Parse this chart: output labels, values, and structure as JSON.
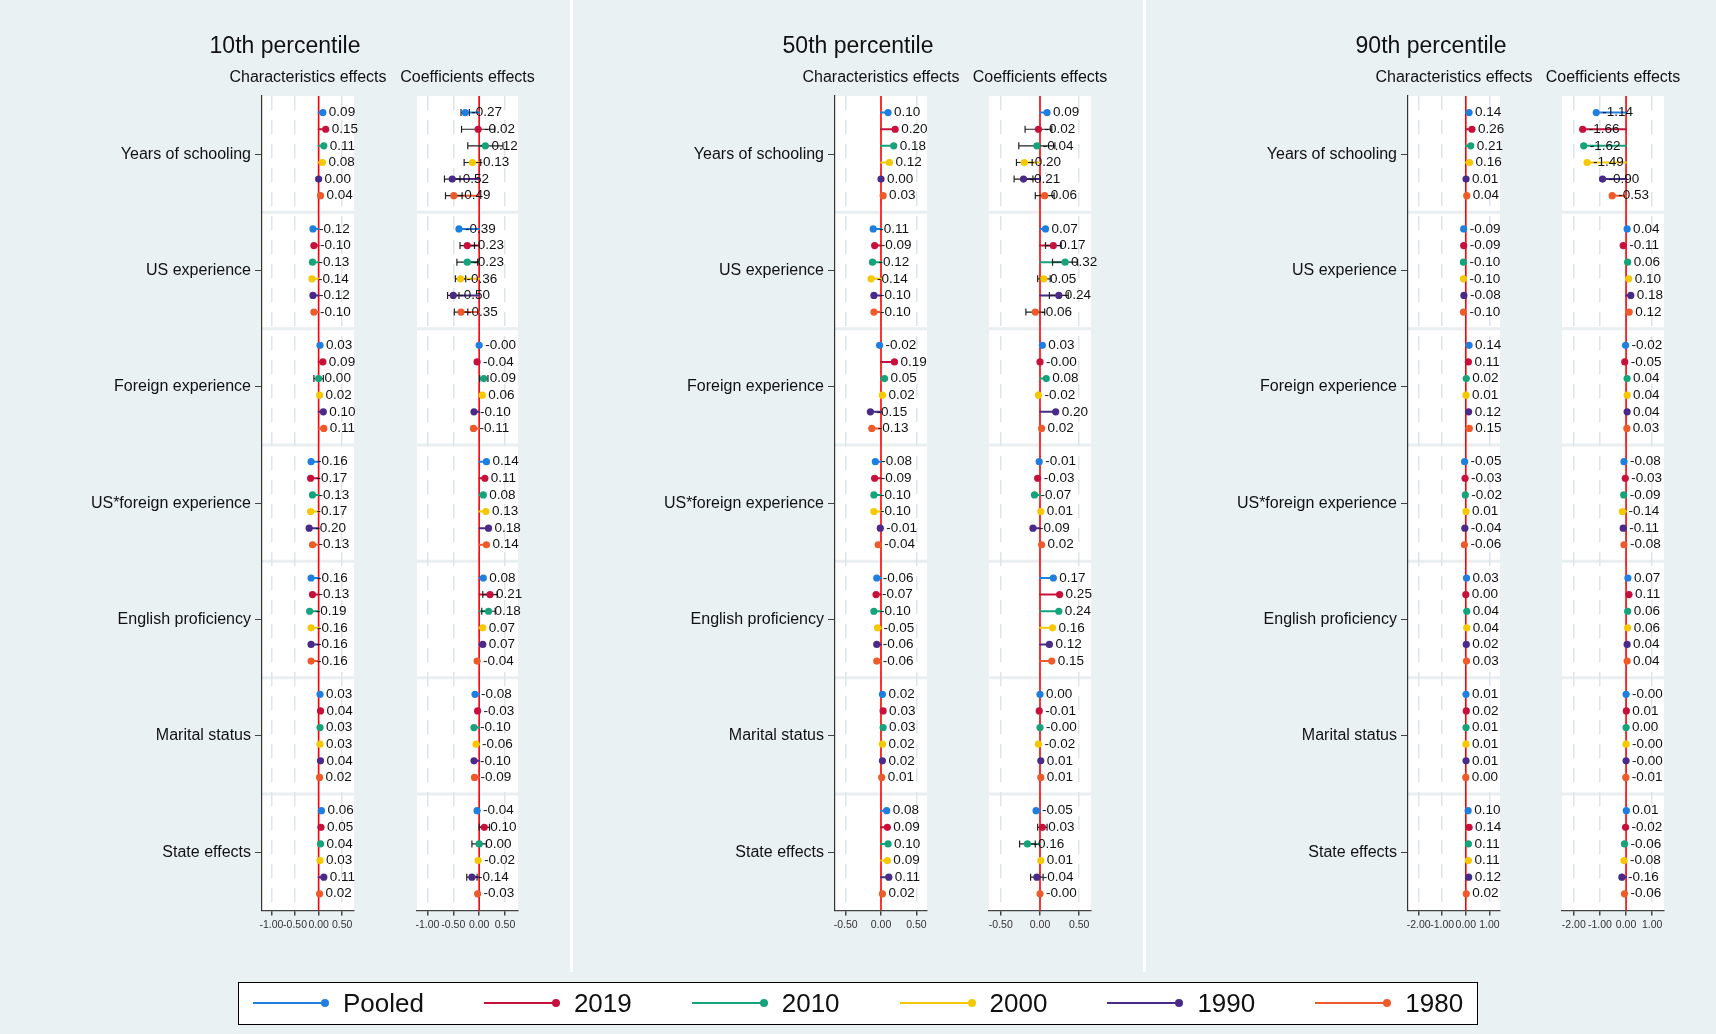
{
  "chart_data": [
    {
      "type": "lollipop",
      "orientation": "horizontal",
      "title": "10th percentile",
      "subtitle": "Characteristics effects",
      "categories": [
        "Years of schooling",
        "US experience",
        "Foreign experience",
        "US*foreign experience",
        "English proficiency",
        "Marital status",
        "State effects"
      ],
      "xlim": [
        -1.2,
        0.75
      ],
      "xticks": [
        {
          "value": -1,
          "label": "-1.00"
        },
        {
          "value": -0.5,
          "label": "-0.50"
        },
        {
          "value": 0,
          "label": "0.00"
        },
        {
          "value": 0.5,
          "label": "0.50"
        }
      ],
      "grid": true,
      "marker": "circle",
      "legend": "bottom",
      "ref_lines": [
        {
          "axis": "x",
          "value": 0,
          "color": "#ff0000"
        }
      ],
      "series": [
        {
          "name": "Pooled",
          "color": "#1e7fe0",
          "values": [
            0.09,
            -0.12,
            0.03,
            -0.16,
            -0.16,
            0.03,
            0.06
          ],
          "value_labels": [
            "0.09",
            "-0.12",
            "0.03",
            "-0.16",
            "-0.16",
            "0.03",
            "0.06"
          ]
        },
        {
          "name": "2019",
          "color": "#c8103c",
          "values": [
            0.15,
            -0.1,
            0.09,
            -0.17,
            -0.13,
            0.04,
            0.05
          ],
          "value_labels": [
            "0.15",
            "-0.10",
            "0.09",
            "-0.17",
            "-0.13",
            "0.04",
            "0.05"
          ]
        },
        {
          "name": "2010",
          "color": "#14a37a",
          "values": [
            0.11,
            -0.13,
            0.0,
            -0.13,
            -0.19,
            0.03,
            0.04
          ],
          "value_labels": [
            "0.11",
            "-0.13",
            "0.00",
            "-0.13",
            "-0.19",
            "0.03",
            "0.04"
          ],
          "errors": [
            null,
            null,
            0.1,
            null,
            null,
            null,
            null
          ]
        },
        {
          "name": "2000",
          "color": "#f5c800",
          "values": [
            0.08,
            -0.14,
            0.02,
            -0.17,
            -0.16,
            0.03,
            0.03
          ],
          "value_labels": [
            "0.08",
            "-0.14",
            "0.02",
            "-0.17",
            "-0.16",
            "0.03",
            "0.03"
          ]
        },
        {
          "name": "1990",
          "color": "#4a2a88",
          "values": [
            0.0,
            -0.12,
            0.1,
            -0.2,
            -0.16,
            0.04,
            0.11
          ],
          "value_labels": [
            "0.00",
            "-0.12",
            "0.10",
            "-0.20",
            "-0.16",
            "0.04",
            "0.11"
          ]
        },
        {
          "name": "1980",
          "color": "#ee5a2a",
          "values": [
            0.04,
            -0.1,
            0.11,
            -0.13,
            -0.16,
            0.02,
            0.02
          ],
          "value_labels": [
            "0.04",
            "-0.10",
            "0.11",
            "-0.13",
            "-0.16",
            "0.02",
            "0.02"
          ]
        }
      ]
    },
    {
      "type": "lollipop",
      "orientation": "horizontal",
      "subtitle": "Coefficients effects",
      "categories": [
        null,
        null,
        null,
        null,
        null,
        null,
        null
      ],
      "tick_labels": "x",
      "xlim": [
        -1.2,
        0.75
      ],
      "xticks": [
        {
          "value": -1,
          "label": "-1.00"
        },
        {
          "value": -0.5,
          "label": "-0.50"
        },
        {
          "value": 0,
          "label": "0.00"
        },
        {
          "value": 0.5,
          "label": "0.50"
        }
      ],
      "grid": true,
      "marker": "circle",
      "ref_lines": [
        {
          "axis": "x",
          "value": 0,
          "color": "#ff0000"
        }
      ],
      "series": [
        {
          "color": "#1e7fe0",
          "values": [
            -0.27,
            -0.39,
            -0.0,
            0.14,
            0.08,
            -0.08,
            -0.04
          ],
          "value_labels": [
            "-0.27",
            "-0.39",
            "-0.00",
            "0.14",
            "0.08",
            "-0.08",
            "-0.04"
          ],
          "errors": [
            0.08,
            null,
            null,
            null,
            null,
            null,
            null
          ]
        },
        {
          "color": "#c8103c",
          "values": [
            -0.02,
            -0.23,
            -0.04,
            0.11,
            0.21,
            -0.03,
            0.1
          ],
          "value_labels": [
            "-0.02",
            "-0.23",
            "-0.04",
            "0.11",
            "0.21",
            "-0.03",
            "0.10"
          ],
          "errors": [
            0.32,
            0.14,
            null,
            null,
            0.14,
            null,
            0.1
          ]
        },
        {
          "color": "#14a37a",
          "values": [
            0.12,
            -0.23,
            0.09,
            0.08,
            0.18,
            -0.1,
            0.0
          ],
          "value_labels": [
            "0.12",
            "-0.23",
            "0.09",
            "0.08",
            "0.18",
            "-0.10",
            "0.00"
          ],
          "errors": [
            0.34,
            0.2,
            0.08,
            null,
            0.13,
            null,
            0.14
          ]
        },
        {
          "color": "#f5c800",
          "values": [
            -0.13,
            -0.36,
            0.06,
            0.13,
            0.07,
            -0.06,
            -0.02
          ],
          "value_labels": [
            "-0.13",
            "-0.36",
            "0.06",
            "0.13",
            "0.07",
            "-0.06",
            "-0.02"
          ],
          "errors": [
            0.16,
            0.1,
            null,
            null,
            null,
            null,
            null
          ]
        },
        {
          "color": "#4a2a88",
          "values": [
            -0.52,
            -0.5,
            -0.1,
            0.18,
            0.07,
            -0.1,
            -0.14
          ],
          "value_labels": [
            "-0.52",
            "-0.50",
            "-0.10",
            "0.18",
            "0.07",
            "-0.10",
            "-0.14"
          ],
          "errors": [
            0.15,
            0.11,
            null,
            null,
            null,
            null,
            0.1
          ]
        },
        {
          "color": "#ee5a2a",
          "values": [
            -0.49,
            -0.35,
            -0.11,
            0.14,
            -0.04,
            -0.09,
            -0.03
          ],
          "value_labels": [
            "-0.49",
            "-0.35",
            "-0.11",
            "0.14",
            "-0.04",
            "-0.09",
            "-0.03"
          ],
          "errors": [
            0.16,
            0.13,
            null,
            null,
            null,
            null,
            null
          ]
        }
      ]
    },
    {
      "type": "lollipop",
      "orientation": "horizontal",
      "title": "50th percentile",
      "subtitle": "Characteristics effects",
      "categories": [
        "Years of schooling",
        "US experience",
        "Foreign experience",
        "US*foreign experience",
        "English proficiency",
        "Marital status",
        "State effects"
      ],
      "xlim": [
        -0.65,
        0.65
      ],
      "xticks": [
        {
          "value": -0.5,
          "label": "-0.50"
        },
        {
          "value": 0,
          "label": "0.00"
        },
        {
          "value": 0.5,
          "label": "0.50"
        }
      ],
      "grid": true,
      "marker": "circle",
      "ref_lines": [
        {
          "axis": "x",
          "value": 0,
          "color": "#ff0000"
        }
      ],
      "series": [
        {
          "color": "#1e7fe0",
          "values": [
            0.1,
            -0.11,
            -0.02,
            -0.08,
            -0.06,
            0.02,
            0.08
          ],
          "value_labels": [
            "0.10",
            "-0.11",
            "-0.02",
            "-0.08",
            "-0.06",
            "0.02",
            "0.08"
          ]
        },
        {
          "color": "#c8103c",
          "values": [
            0.2,
            -0.09,
            0.19,
            -0.09,
            -0.07,
            0.03,
            0.09
          ],
          "value_labels": [
            "0.20",
            "-0.09",
            "0.19",
            "-0.09",
            "-0.07",
            "0.03",
            "0.09"
          ]
        },
        {
          "color": "#14a37a",
          "values": [
            0.18,
            -0.12,
            0.05,
            -0.1,
            -0.1,
            0.03,
            0.1
          ],
          "value_labels": [
            "0.18",
            "-0.12",
            "0.05",
            "-0.10",
            "-0.10",
            "0.03",
            "0.10"
          ]
        },
        {
          "color": "#f5c800",
          "values": [
            0.12,
            -0.14,
            0.02,
            -0.1,
            -0.05,
            0.02,
            0.09
          ],
          "value_labels": [
            "0.12",
            "-0.14",
            "0.02",
            "-0.10",
            "-0.05",
            "0.02",
            "0.09"
          ]
        },
        {
          "color": "#4a2a88",
          "values": [
            0.0,
            -0.1,
            -0.15,
            -0.01,
            -0.06,
            0.02,
            0.11
          ],
          "value_labels": [
            "0.00",
            "-0.10",
            "-0.15",
            "-0.01",
            "-0.06",
            "0.02",
            "0.11"
          ]
        },
        {
          "color": "#ee5a2a",
          "values": [
            0.03,
            -0.1,
            -0.13,
            -0.04,
            -0.06,
            0.01,
            0.02
          ],
          "value_labels": [
            "0.03",
            "-0.10",
            "-0.13",
            "-0.04",
            "-0.06",
            "0.01",
            "0.02"
          ]
        }
      ]
    },
    {
      "type": "lollipop",
      "orientation": "horizontal",
      "subtitle": "Coefficients effects",
      "categories": [
        null,
        null,
        null,
        null,
        null,
        null,
        null
      ],
      "tick_labels": "x",
      "xlim": [
        -0.65,
        0.65
      ],
      "xticks": [
        {
          "value": -0.5,
          "label": "-0.50"
        },
        {
          "value": 0,
          "label": "0.00"
        },
        {
          "value": 0.5,
          "label": "0.50"
        }
      ],
      "grid": true,
      "marker": "circle",
      "ref_lines": [
        {
          "axis": "x",
          "value": 0,
          "color": "#ff0000"
        }
      ],
      "series": [
        {
          "color": "#1e7fe0",
          "values": [
            0.09,
            0.07,
            0.03,
            -0.01,
            0.17,
            0.0,
            -0.05
          ],
          "value_labels": [
            "0.09",
            "0.07",
            "0.03",
            "-0.01",
            "0.17",
            "0.00",
            "-0.05"
          ]
        },
        {
          "color": "#c8103c",
          "values": [
            -0.02,
            0.17,
            -0.0,
            -0.03,
            0.25,
            -0.01,
            0.03
          ],
          "value_labels": [
            "-0.02",
            "0.17",
            "-0.00",
            "-0.03",
            "0.25",
            "-0.01",
            "0.03"
          ],
          "errors": [
            0.17,
            0.1,
            null,
            null,
            null,
            null,
            0.06
          ]
        },
        {
          "color": "#14a37a",
          "values": [
            -0.04,
            0.32,
            0.08,
            -0.07,
            0.24,
            -0.0,
            -0.16
          ],
          "value_labels": [
            "-0.04",
            "0.32",
            "0.08",
            "-0.07",
            "0.24",
            "-0.00",
            "-0.16"
          ],
          "errors": [
            0.23,
            0.16,
            null,
            null,
            null,
            null,
            0.1
          ]
        },
        {
          "color": "#f5c800",
          "values": [
            -0.2,
            0.05,
            -0.02,
            0.01,
            0.16,
            -0.02,
            0.01
          ],
          "value_labels": [
            "-0.20",
            "0.05",
            "-0.02",
            "0.01",
            "0.16",
            "-0.02",
            "0.01"
          ],
          "errors": [
            0.1,
            0.08,
            null,
            null,
            null,
            null,
            null
          ]
        },
        {
          "color": "#4a2a88",
          "values": [
            -0.21,
            0.24,
            0.2,
            -0.09,
            0.12,
            0.01,
            -0.04
          ],
          "value_labels": [
            "-0.21",
            "0.24",
            "0.20",
            "-0.09",
            "0.12",
            "0.01",
            "-0.04"
          ],
          "errors": [
            0.12,
            0.12,
            null,
            null,
            null,
            null,
            0.08
          ]
        },
        {
          "color": "#ee5a2a",
          "values": [
            0.06,
            -0.06,
            0.02,
            0.02,
            0.15,
            0.01,
            -0.0
          ],
          "value_labels": [
            "0.06",
            "-0.06",
            "0.02",
            "0.02",
            "0.15",
            "0.01",
            "-0.00"
          ],
          "errors": [
            0.12,
            0.12,
            null,
            null,
            null,
            null,
            null
          ]
        }
      ]
    },
    {
      "type": "lollipop",
      "orientation": "horizontal",
      "title": "90th percentile",
      "subtitle": "Characteristics effects",
      "categories": [
        "Years of schooling",
        "US experience",
        "Foreign experience",
        "US*foreign experience",
        "English proficiency",
        "Marital status",
        "State effects"
      ],
      "xlim": [
        -2.45,
        1.45
      ],
      "xticks": [
        {
          "value": -2,
          "label": "-2.00"
        },
        {
          "value": -1,
          "label": "-1.00"
        },
        {
          "value": 0,
          "label": "0.00"
        },
        {
          "value": 1,
          "label": "1.00"
        }
      ],
      "grid": true,
      "marker": "circle",
      "ref_lines": [
        {
          "axis": "x",
          "value": 0,
          "color": "#ff0000"
        }
      ],
      "series": [
        {
          "color": "#1e7fe0",
          "values": [
            0.14,
            -0.09,
            0.14,
            -0.05,
            0.03,
            0.01,
            0.1
          ],
          "value_labels": [
            "0.14",
            "-0.09",
            "0.14",
            "-0.05",
            "0.03",
            "0.01",
            "0.10"
          ]
        },
        {
          "color": "#c8103c",
          "values": [
            0.26,
            -0.09,
            0.11,
            -0.03,
            0.0,
            0.02,
            0.14
          ],
          "value_labels": [
            "0.26",
            "-0.09",
            "0.11",
            "-0.03",
            "0.00",
            "0.02",
            "0.14"
          ]
        },
        {
          "color": "#14a37a",
          "values": [
            0.21,
            -0.1,
            0.02,
            -0.02,
            0.04,
            0.01,
            0.11
          ],
          "value_labels": [
            "0.21",
            "-0.10",
            "0.02",
            "-0.02",
            "0.04",
            "0.01",
            "0.11"
          ]
        },
        {
          "color": "#f5c800",
          "values": [
            0.16,
            -0.1,
            0.01,
            0.01,
            0.04,
            0.01,
            0.11
          ],
          "value_labels": [
            "0.16",
            "-0.10",
            "0.01",
            "0.01",
            "0.04",
            "0.01",
            "0.11"
          ]
        },
        {
          "color": "#4a2a88",
          "values": [
            0.01,
            -0.08,
            0.12,
            -0.04,
            0.02,
            0.01,
            0.12
          ],
          "value_labels": [
            "0.01",
            "-0.08",
            "0.12",
            "-0.04",
            "0.02",
            "0.01",
            "0.12"
          ]
        },
        {
          "color": "#ee5a2a",
          "values": [
            0.04,
            -0.1,
            0.15,
            -0.06,
            0.03,
            0.0,
            0.02
          ],
          "value_labels": [
            "0.04",
            "-0.10",
            "0.15",
            "-0.06",
            "0.03",
            "0.00",
            "0.02"
          ]
        }
      ]
    },
    {
      "type": "lollipop",
      "orientation": "horizontal",
      "subtitle": "Coefficients effects",
      "categories": [
        null,
        null,
        null,
        null,
        null,
        null,
        null
      ],
      "tick_labels": "x",
      "xlim": [
        -2.45,
        1.45
      ],
      "xticks": [
        {
          "value": -2,
          "label": "-2.00"
        },
        {
          "value": -1,
          "label": "-1.00"
        },
        {
          "value": 0,
          "label": "0.00"
        },
        {
          "value": 1,
          "label": "1.00"
        }
      ],
      "grid": true,
      "marker": "circle",
      "ref_lines": [
        {
          "axis": "x",
          "value": 0,
          "color": "#ff0000"
        }
      ],
      "series": [
        {
          "color": "#1e7fe0",
          "values": [
            -1.14,
            0.04,
            -0.02,
            -0.08,
            0.07,
            -0.0,
            0.01
          ],
          "value_labels": [
            "-1.14",
            "0.04",
            "-0.02",
            "-0.08",
            "0.07",
            "-0.00",
            "0.01"
          ]
        },
        {
          "color": "#c8103c",
          "values": [
            -1.66,
            -0.11,
            -0.05,
            -0.03,
            0.11,
            0.01,
            -0.02
          ],
          "value_labels": [
            "-1.66",
            "-0.11",
            "-0.05",
            "-0.03",
            "0.11",
            "0.01",
            "-0.02"
          ]
        },
        {
          "color": "#14a37a",
          "values": [
            -1.62,
            0.06,
            0.04,
            -0.09,
            0.06,
            0.0,
            -0.06
          ],
          "value_labels": [
            "-1.62",
            "0.06",
            "0.04",
            "-0.09",
            "0.06",
            "0.00",
            "-0.06"
          ]
        },
        {
          "color": "#f5c800",
          "values": [
            -1.49,
            0.1,
            0.04,
            -0.14,
            0.06,
            -0.0,
            -0.08
          ],
          "value_labels": [
            "-1.49",
            "0.10",
            "0.04",
            "-0.14",
            "0.06",
            "-0.00",
            "-0.08"
          ]
        },
        {
          "color": "#4a2a88",
          "values": [
            -0.9,
            0.18,
            0.04,
            -0.11,
            0.04,
            -0.0,
            -0.16
          ],
          "value_labels": [
            "-0.90",
            "0.18",
            "0.04",
            "-0.11",
            "0.04",
            "-0.00",
            "-0.16"
          ]
        },
        {
          "color": "#ee5a2a",
          "values": [
            -0.53,
            0.12,
            0.03,
            -0.08,
            0.04,
            -0.01,
            -0.06
          ],
          "value_labels": [
            "-0.53",
            "0.12",
            "0.03",
            "-0.08",
            "0.04",
            "-0.01",
            "-0.06"
          ]
        }
      ]
    }
  ]
}
